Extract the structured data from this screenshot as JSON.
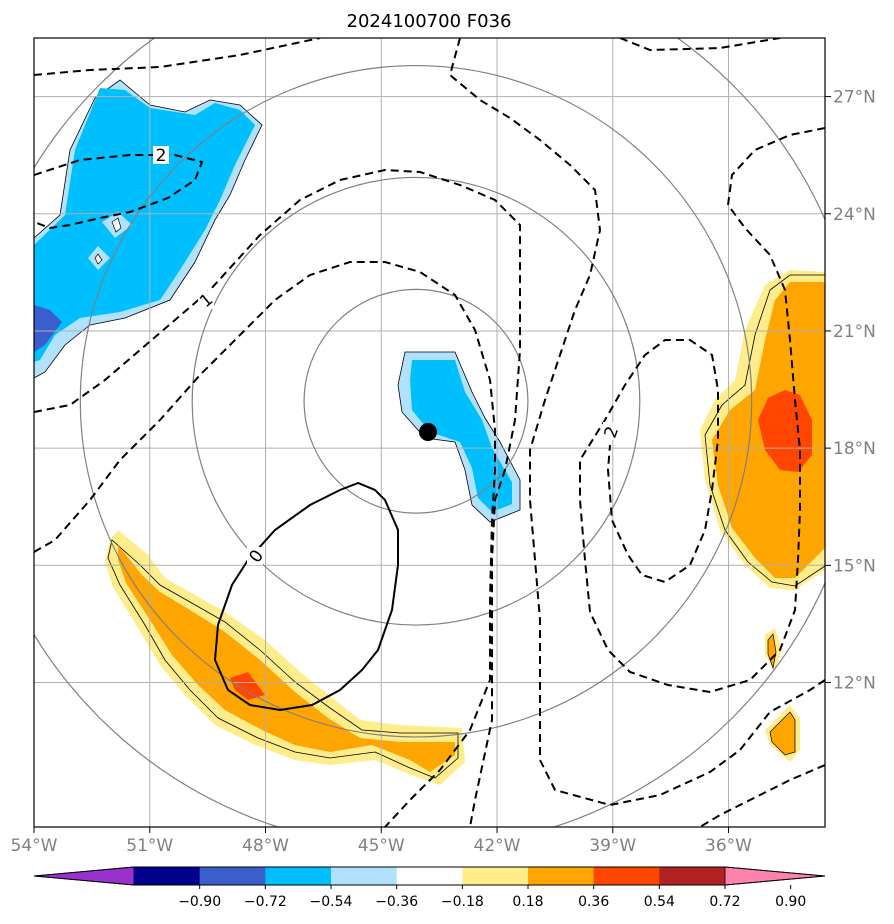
{
  "title": "2024100700 F036",
  "chart_data": {
    "type": "heatmap",
    "title": "2024100700 F036",
    "xlim": [
      -54,
      -33.5
    ],
    "ylim": [
      8.3,
      28.5
    ],
    "x_ticks": [
      {
        "value": -54,
        "label": "54°W"
      },
      {
        "value": -51,
        "label": "51°W"
      },
      {
        "value": -48,
        "label": "48°W"
      },
      {
        "value": -45,
        "label": "45°W"
      },
      {
        "value": -42,
        "label": "42°W"
      },
      {
        "value": -39,
        "label": "39°W"
      },
      {
        "value": -36,
        "label": "36°W"
      }
    ],
    "y_ticks": [
      {
        "value": 27,
        "label": "27°N"
      },
      {
        "value": 24,
        "label": "24°N"
      },
      {
        "value": 21,
        "label": "21°N"
      },
      {
        "value": 18,
        "label": "18°N"
      },
      {
        "value": 15,
        "label": "15°N"
      },
      {
        "value": 12,
        "label": "12°N"
      }
    ],
    "grid": true,
    "center": {
      "lon": -44.1,
      "lat": 19.2
    },
    "range_rings_deg": [
      2.9,
      5.8,
      8.7,
      11.6
    ],
    "colorbar": {
      "ticks": [
        "−0.90",
        "−0.72",
        "−0.54",
        "−0.36",
        "−0.18",
        "0.18",
        "0.36",
        "0.54",
        "0.72",
        "0.90"
      ],
      "colors": [
        "#9932cc",
        "#00008b",
        "#3a5fcd",
        "#00bfff",
        "#b0e2ff",
        "#ffffff",
        "#ffec8b",
        "#ffa500",
        "#ff4500",
        "#b22222",
        "#ff82ab"
      ]
    },
    "contour_labels": [
      "2",
      "1",
      "0",
      "2"
    ]
  }
}
